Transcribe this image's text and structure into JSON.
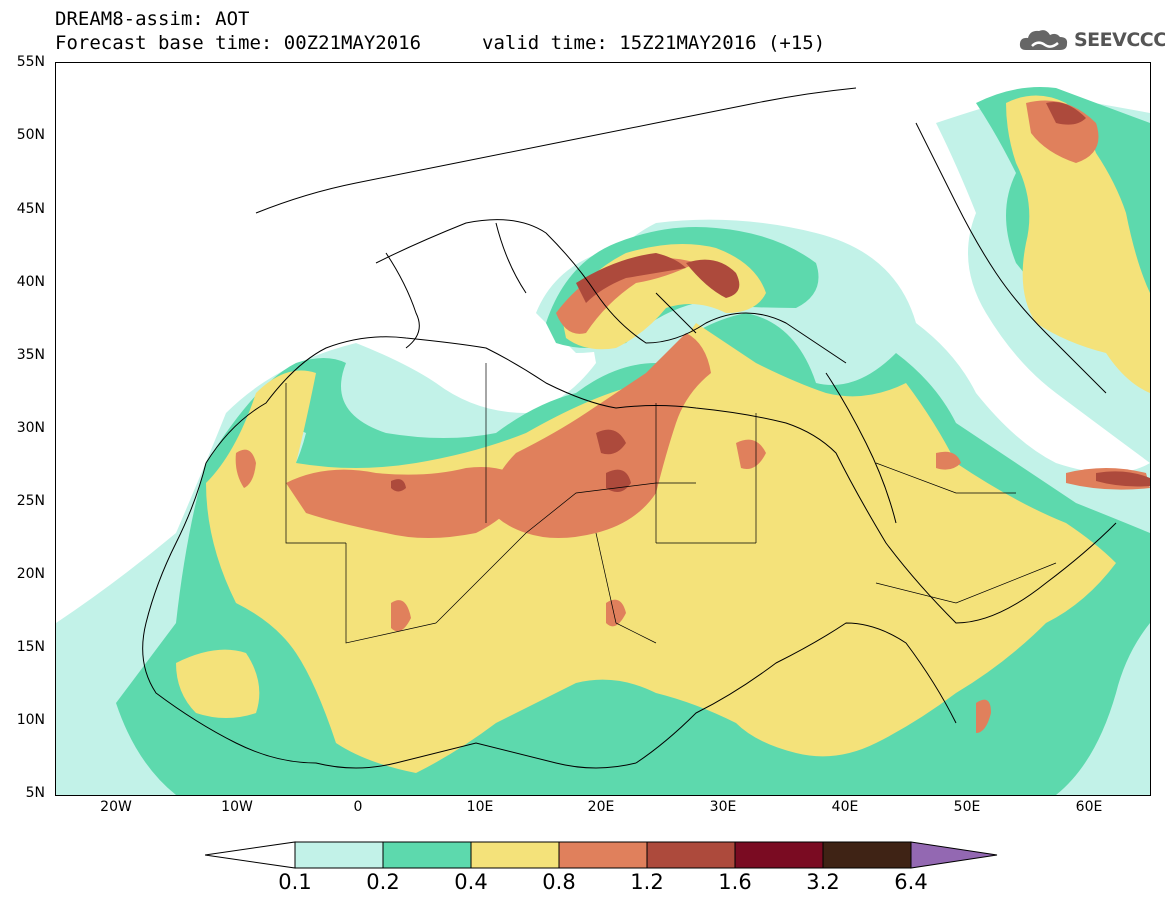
{
  "header": {
    "title_line1": "DREAM8-assim: AOT",
    "title_line2": "Forecast base time: 00Z21MAY2016",
    "valid_time": "valid time: 15Z21MAY2016 (+15)",
    "logo_text": "SEEVCCC"
  },
  "map": {
    "lat_labels": [
      "55N",
      "50N",
      "45N",
      "40N",
      "35N",
      "30N",
      "25N",
      "20N",
      "15N",
      "10N",
      "5N"
    ],
    "lon_labels": [
      "20W",
      "10W",
      "0",
      "10E",
      "20E",
      "30E",
      "40E",
      "50E",
      "60E"
    ],
    "lon_range": [
      -25,
      65
    ],
    "lat_range": [
      5,
      55
    ],
    "field": "AOT (aerosol optical thickness), dust"
  },
  "colorbar": {
    "labels": [
      "0.1",
      "0.2",
      "0.4",
      "0.8",
      "1.2",
      "1.6",
      "3.2",
      "6.4"
    ],
    "colors": [
      "#ffffff",
      "#c2f2e8",
      "#5dd9ad",
      "#f4e27a",
      "#e0805c",
      "#ad4a3c",
      "#7a0b22",
      "#3f2315",
      "#9368b2"
    ]
  },
  "colors": {
    "level1": "#c2f2e8",
    "level2": "#5dd9ad",
    "level3": "#f4e27a",
    "level4": "#e0805c",
    "level5": "#ad4a3c",
    "level6": "#7a0b22"
  }
}
